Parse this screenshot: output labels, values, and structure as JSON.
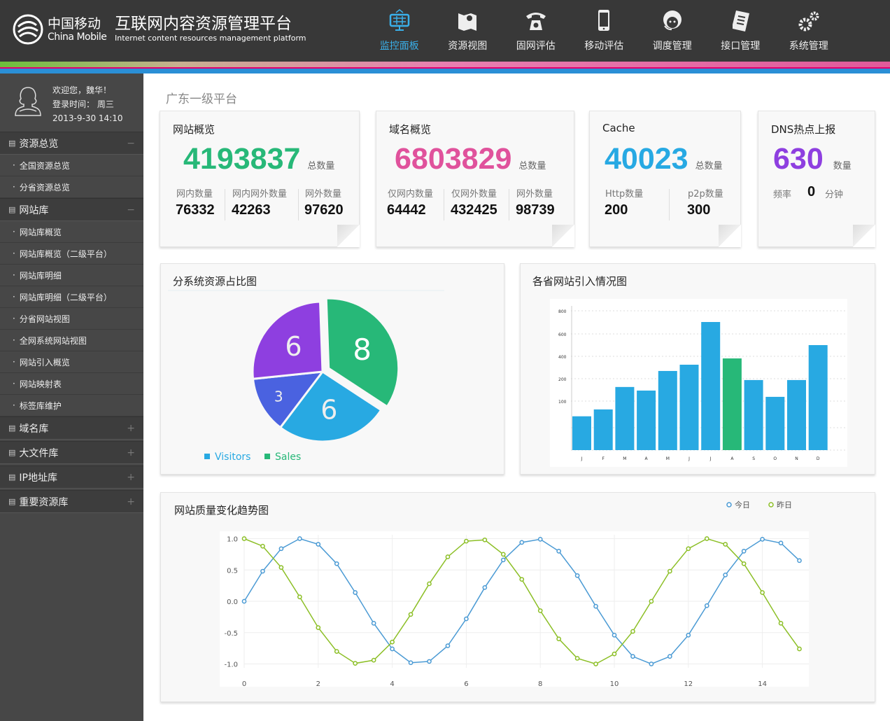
{
  "brand": {
    "cn": "中国移动",
    "en": "China Mobile",
    "title": "互联网内容资源管理平台",
    "subtitle": "Internet content resources management platform"
  },
  "nav": [
    {
      "label": "监控面板",
      "icon": "dashboard-icon",
      "active": true
    },
    {
      "label": "资源视图",
      "icon": "map-icon"
    },
    {
      "label": "固网评估",
      "icon": "telephone-icon"
    },
    {
      "label": "移动评估",
      "icon": "mobile-phone-icon"
    },
    {
      "label": "调度管理",
      "icon": "headset-operator-icon"
    },
    {
      "label": "接口管理",
      "icon": "document-list-icon"
    },
    {
      "label": "系统管理",
      "icon": "gears-icon"
    }
  ],
  "user": {
    "welcome": "欢迎您，魏华！",
    "login_label": "登录时间：  周三",
    "login_time": "2013-9-30    14:10"
  },
  "sidebar": [
    {
      "label": "资源总览",
      "state": "−",
      "items": [
        "全国资源总览",
        "分省资源总览"
      ]
    },
    {
      "label": "网站库",
      "state": "−",
      "items": [
        "网站库概览",
        "网站库概览（二级平台）",
        "网站库明细",
        "网站库明细（二级平台）",
        "分省网站视图",
        "全网系统网站视图",
        "网站引入概览",
        "网站映射表",
        "标签库维护"
      ]
    },
    {
      "label": "域名库",
      "state": "+",
      "items": []
    },
    {
      "label": "大文件库",
      "state": "+",
      "items": []
    },
    {
      "label": "IP地址库",
      "state": "+",
      "items": []
    },
    {
      "label": "重要资源库",
      "state": "+",
      "items": []
    }
  ],
  "breadcrumb": "广东一级平台",
  "cards": {
    "website": {
      "title": "网站概览",
      "total": "4193837",
      "unit": "总数量",
      "color": "#27b878",
      "stats": [
        {
          "label": "网内数量",
          "value": "76332"
        },
        {
          "label": "网内网外数量",
          "value": "42263"
        },
        {
          "label": "网外数量",
          "value": "97620"
        }
      ]
    },
    "domain": {
      "title": "域名概览",
      "total": "6803829",
      "unit": "总数量",
      "color": "#e0529c",
      "stats": [
        {
          "label": "仅网内数量",
          "value": "64442"
        },
        {
          "label": "仅网外数量",
          "value": "432425"
        },
        {
          "label": "网外数量",
          "value": "98739"
        }
      ]
    },
    "cache": {
      "title": "Cache",
      "total": "40023",
      "unit": "总数量",
      "color": "#27a9e3",
      "stats": [
        {
          "label": "Http数量",
          "value": "200"
        },
        {
          "label": "p2p数量",
          "value": "300"
        }
      ]
    },
    "dns": {
      "title": "DNS热点上报",
      "total": "630",
      "unit": "数量",
      "color": "#8e3fe0",
      "freq_label": "频率",
      "freq_value": "0",
      "freq_unit": "分钟"
    }
  },
  "chart_data": [
    {
      "type": "pie",
      "title": "分系统资源占比图",
      "values": [
        8,
        6,
        3,
        6
      ],
      "colors": [
        "#27b878",
        "#28a9e2",
        "#4a62e0",
        "#8e3fe0"
      ],
      "exploded": 0,
      "legend": [
        {
          "name": "Visitors",
          "color": "#28a9e2"
        },
        {
          "name": "Sales",
          "color": "#27b878"
        }
      ],
      "legend_position": "bottom-left"
    },
    {
      "type": "bar",
      "title": "各省网站引入情况图",
      "categories": [
        "J",
        "F",
        "M",
        "A",
        "M",
        "J",
        "J",
        "A",
        "S",
        "O",
        "N",
        "D"
      ],
      "values": [
        69,
        83,
        163,
        147,
        269,
        325,
        703,
        381,
        194,
        119,
        194,
        500
      ],
      "highlight_index": 7,
      "bar_color": "#28a9e2",
      "highlight_color": "#27b878",
      "yticks": [
        100,
        200,
        400,
        600,
        800
      ],
      "ylim": [
        0,
        800
      ],
      "grid": true
    },
    {
      "type": "line",
      "title": "网站质量变化趋势图",
      "x": [
        0,
        0.5,
        1,
        1.5,
        2,
        2.5,
        3,
        3.5,
        4,
        4.5,
        5,
        5.5,
        6,
        6.5,
        7,
        7.5,
        8,
        8.5,
        9,
        9.5,
        10,
        10.5,
        11,
        11.5,
        12,
        12.5,
        13,
        13.5,
        14,
        14.5,
        15
      ],
      "series": [
        {
          "name": "今日",
          "color": "#4a9ad4",
          "values": [
            0,
            0.48,
            0.84,
            1.0,
            0.91,
            0.6,
            0.14,
            -0.35,
            -0.76,
            -0.98,
            -0.96,
            -0.71,
            -0.28,
            0.22,
            0.66,
            0.94,
            0.99,
            0.8,
            0.41,
            -0.08,
            -0.54,
            -0.88,
            -1.0,
            -0.88,
            -0.54,
            -0.07,
            0.42,
            0.8,
            0.99,
            0.93,
            0.65
          ]
        },
        {
          "name": "昨日",
          "color": "#8cbf26",
          "values": [
            1.0,
            0.88,
            0.54,
            0.07,
            -0.42,
            -0.8,
            -0.99,
            -0.94,
            -0.65,
            -0.21,
            0.28,
            0.71,
            0.96,
            0.98,
            0.75,
            0.35,
            -0.15,
            -0.6,
            -0.91,
            -1.0,
            -0.84,
            -0.48,
            0.0,
            0.48,
            0.84,
            1.0,
            0.91,
            0.6,
            0.14,
            -0.35,
            -0.76
          ]
        }
      ],
      "xticks": [
        0,
        2,
        4,
        6,
        8,
        10,
        12,
        14
      ],
      "yticks": [
        1.0,
        0.5,
        0.0,
        -0.5,
        -1.0
      ],
      "xlim": [
        0,
        15
      ],
      "ylim": [
        -1,
        1
      ],
      "grid": true,
      "legend_position": "top-right"
    }
  ]
}
